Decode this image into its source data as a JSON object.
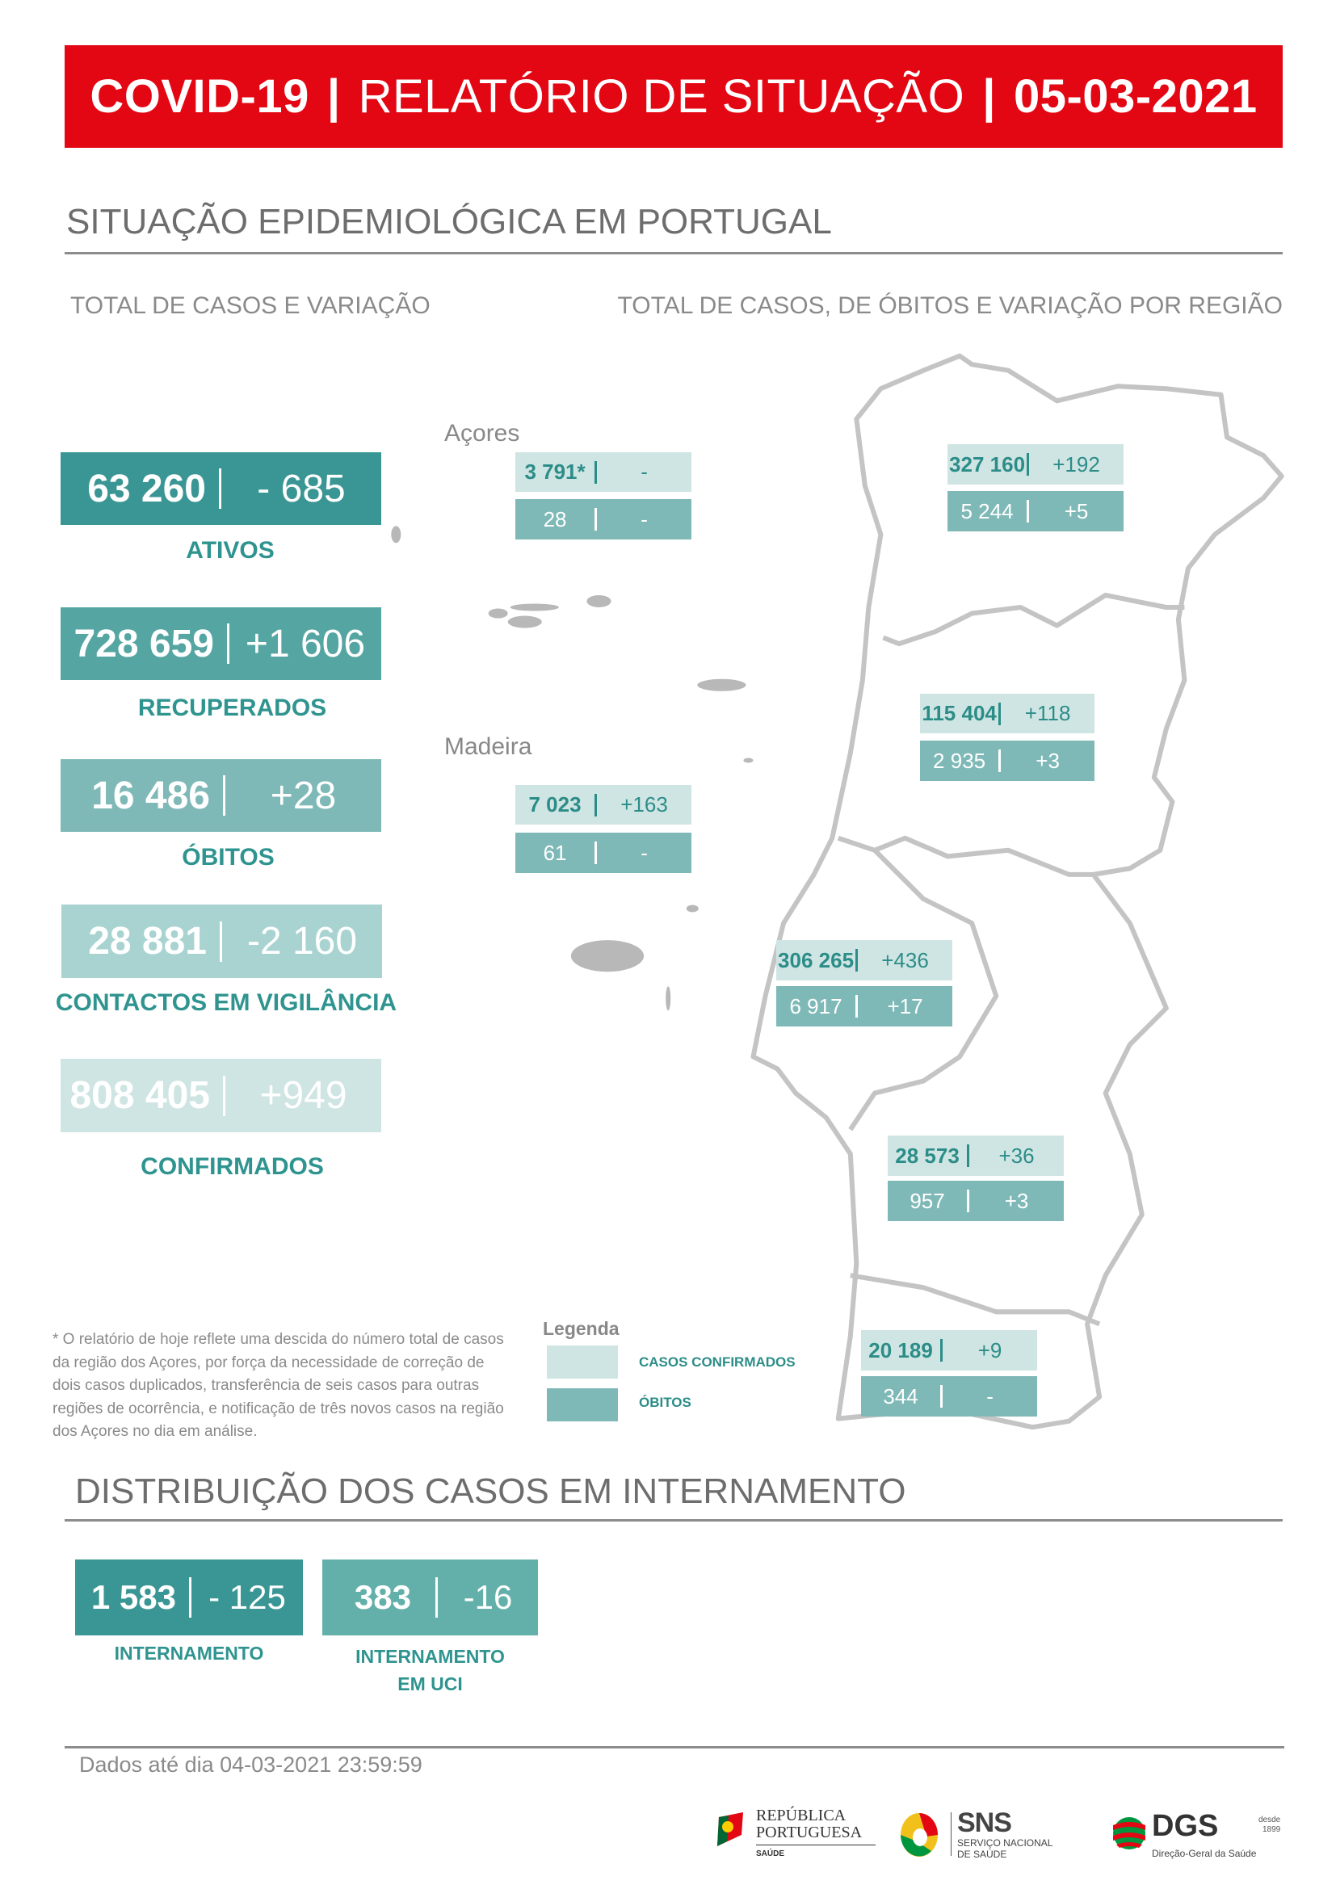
{
  "header": {
    "part1": "COVID-19",
    "part2": "RELATÓRIO DE SITUAÇÃO",
    "date": "05-03-2021",
    "separator": "|",
    "color": "#e30613"
  },
  "section1": {
    "title": "SITUAÇÃO EPIDEMIOLÓGICA EM PORTUGAL",
    "left_subtitle": "TOTAL DE CASOS E VARIAÇÃO",
    "right_subtitle": "TOTAL DE CASOS, DE ÓBITOS E VARIAÇÃO POR REGIÃO"
  },
  "kpis": [
    {
      "value": "63 260",
      "delta": "- 685",
      "label": "ATIVOS",
      "color": "#3a9694"
    },
    {
      "value": "728 659",
      "delta": "+1 606",
      "label": "RECUPERADOS",
      "color": "#55a5a2"
    },
    {
      "value": "16 486",
      "delta": "+28",
      "label": "ÓBITOS",
      "color": "#7fb9b7"
    },
    {
      "value": "28 881",
      "delta": "-2 160",
      "label": "CONTACTOS EM VIGILÂNCIA",
      "color": "#a8d3d1"
    },
    {
      "value": "808 405",
      "delta": "+949",
      "label": "CONFIRMADOS",
      "color": "#cfe5e3"
    }
  ],
  "islands": {
    "acores": "Açores",
    "madeira": "Madeira"
  },
  "regions": [
    {
      "cases": "3 791*",
      "cases_delta": "-",
      "deaths": "28",
      "deaths_delta": "-"
    },
    {
      "cases": "327 160",
      "cases_delta": "+192",
      "deaths": "5 244",
      "deaths_delta": "+5"
    },
    {
      "cases": "115 404",
      "cases_delta": "+118",
      "deaths": "2 935",
      "deaths_delta": "+3"
    },
    {
      "cases": "7 023",
      "cases_delta": "+163",
      "deaths": "61",
      "deaths_delta": "-"
    },
    {
      "cases": "306 265",
      "cases_delta": "+436",
      "deaths": "6 917",
      "deaths_delta": "+17"
    },
    {
      "cases": "28 573",
      "cases_delta": "+36",
      "deaths": "957",
      "deaths_delta": "+3"
    },
    {
      "cases": "20 189",
      "cases_delta": "+9",
      "deaths": "344",
      "deaths_delta": "-"
    }
  ],
  "footnote": "* O relatório de hoje reflete uma descida do número total de casos da região dos Açores, por força da necessidade de correção de dois casos duplicados, transferência de seis casos para outras regiões de ocorrência, e notificação de três novos casos na região dos Açores no dia em análise.",
  "legend": {
    "title": "Legenda",
    "items": [
      {
        "label": "CASOS CONFIRMADOS",
        "color": "#cfe5e3"
      },
      {
        "label": "ÓBITOS",
        "color": "#7fb9b7"
      }
    ]
  },
  "section2": {
    "title": "DISTRIBUIÇÃO DOS CASOS EM INTERNAMENTO",
    "items": [
      {
        "value": "1 583",
        "delta": "- 125",
        "label": "INTERNAMENTO",
        "color": "#3a9694"
      },
      {
        "value": "383",
        "delta": "-16",
        "label_line1": "INTERNAMENTO",
        "label_line2": "EM UCI",
        "color": "#63b0aa"
      }
    ]
  },
  "footer": {
    "dados": "Dados até dia 04-03-2021 23:59:59",
    "logos": {
      "republica": {
        "line1": "REPÚBLICA",
        "line2": "PORTUGUESA",
        "line3": "SAÚDE"
      },
      "sns": {
        "title": "SNS",
        "line1": "SERVIÇO NACIONAL",
        "line2": "DE SAÚDE"
      },
      "dgs": {
        "title": "DGS",
        "since": "desde",
        "year": "1899",
        "subtitle": "Direção-Geral da Saúde"
      }
    }
  }
}
